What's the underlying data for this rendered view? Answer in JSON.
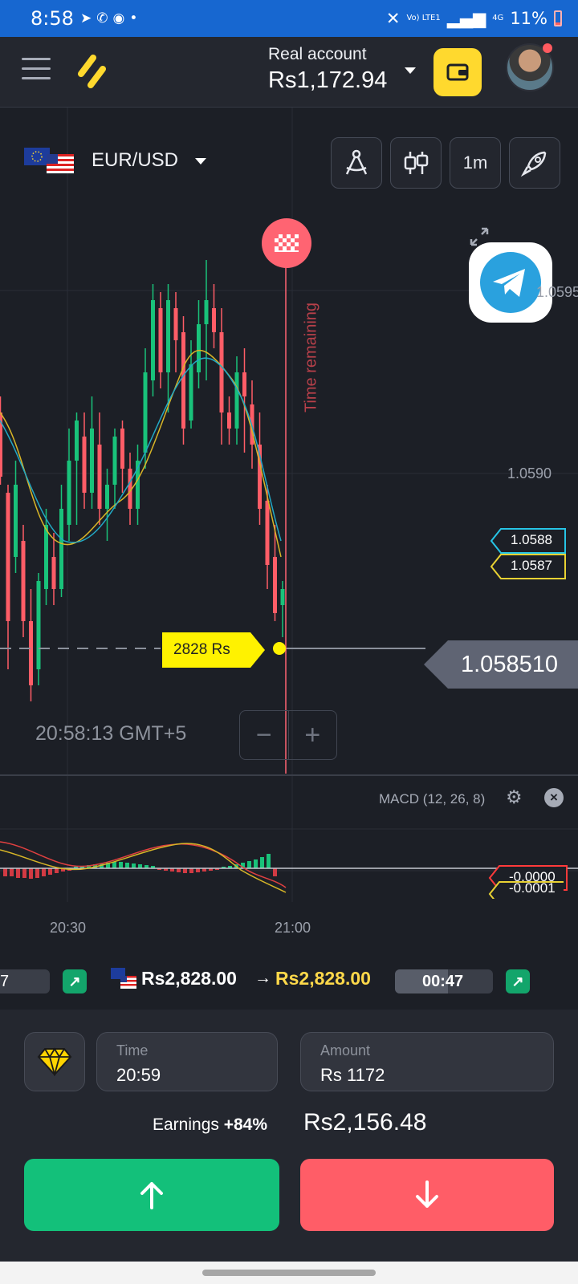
{
  "status_bar": {
    "time": "8:58",
    "network": "Vo) LTE1",
    "network_type": "4G",
    "battery": "11%",
    "icons": [
      "telegram-icon",
      "phone-icon",
      "app-icon",
      "dot-icon",
      "mute-icon",
      "signal-icon",
      "battery-icon"
    ]
  },
  "header": {
    "account_label": "Real account",
    "balance": "Rs1,172.94",
    "colors": {
      "accent": "#ffd92e",
      "header_bg": "#24272f"
    }
  },
  "asset": {
    "pair": "EUR/USD"
  },
  "toolbar": {
    "timeframe": "1m"
  },
  "chart": {
    "time_remaining_label": "Time remaining",
    "price_axis": [
      "1.0595",
      "1.0590"
    ],
    "indicator_prices": {
      "cyan": "1.0588",
      "yellow": "1.0587"
    },
    "current_price": "1.058510",
    "trade_marker": "2828 Rs",
    "clock": "20:58:13 GMT+5",
    "time_axis": [
      "20:30",
      "21:00"
    ],
    "macd_label": "MACD (12, 26, 8)",
    "macd_values": [
      "-0.0000",
      "-0.0001"
    ],
    "colors": {
      "bull": "#19c27a",
      "bear": "#ff5d67",
      "ma_yellow": "#d7b527",
      "ma_cyan": "#22a8c4"
    }
  },
  "deals": {
    "left_fragment": "7",
    "amount": "Rs2,828.00",
    "arrow": "→",
    "amount_result": "Rs2,828.00",
    "timer": "00:47"
  },
  "trade_panel": {
    "time_label": "Time",
    "time_value": "20:59",
    "amount_label": "Amount",
    "amount_value": "Rs 1172",
    "earnings_label": "Earnings",
    "earnings_percent": "+84%",
    "earnings_value": "Rs2,156.48",
    "colors": {
      "up": "#13c07a",
      "down": "#ff5d67"
    }
  }
}
